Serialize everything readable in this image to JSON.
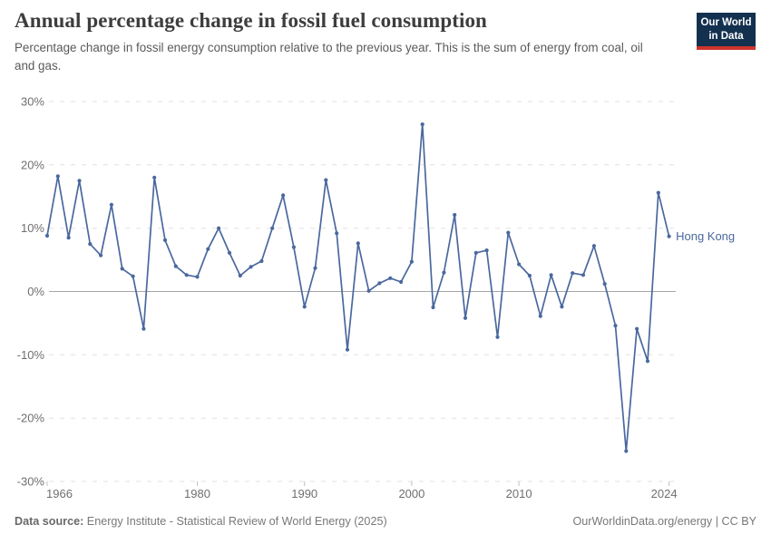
{
  "logo": {
    "line1": "Our World",
    "line2": "in Data"
  },
  "chart_data": {
    "type": "line",
    "title": "Annual percentage change in fossil fuel consumption",
    "subtitle": "Percentage change in fossil energy consumption relative to the previous year. This is the sum of energy from coal, oil and gas.",
    "x": [
      1966,
      1967,
      1968,
      1969,
      1970,
      1971,
      1972,
      1973,
      1974,
      1975,
      1976,
      1977,
      1978,
      1979,
      1980,
      1981,
      1982,
      1983,
      1984,
      1985,
      1986,
      1987,
      1988,
      1989,
      1990,
      1991,
      1992,
      1993,
      1994,
      1995,
      1996,
      1997,
      1998,
      1999,
      2000,
      2001,
      2002,
      2003,
      2004,
      2005,
      2006,
      2007,
      2008,
      2009,
      2010,
      2011,
      2012,
      2013,
      2014,
      2015,
      2016,
      2017,
      2018,
      2019,
      2020,
      2021,
      2022,
      2023,
      2024
    ],
    "series": [
      {
        "name": "Hong Kong",
        "color": "#4a689e",
        "values": [
          8.8,
          18.2,
          8.5,
          17.5,
          7.5,
          5.7,
          13.7,
          3.6,
          2.4,
          -5.9,
          18.0,
          8.1,
          4.0,
          2.6,
          2.3,
          6.7,
          10.0,
          6.1,
          2.5,
          3.9,
          4.8,
          10.0,
          15.2,
          7.0,
          -2.4,
          3.7,
          17.6,
          9.2,
          -9.2,
          7.6,
          0.1,
          1.3,
          2.1,
          1.5,
          4.7,
          26.4,
          -2.5,
          3.0,
          12.1,
          -4.2,
          6.1,
          6.5,
          -7.2,
          9.3,
          4.3,
          2.5,
          -3.9,
          2.6,
          -2.4,
          2.9,
          2.6,
          7.2,
          1.2,
          -5.4,
          -25.2,
          -5.9,
          -11.0,
          15.6,
          8.7
        ]
      }
    ],
    "xlabel": "",
    "ylabel": "",
    "ylim": [
      -30,
      30
    ],
    "yticks": [
      30,
      20,
      10,
      0,
      -10,
      -20,
      -30
    ],
    "ytick_suffix": "%",
    "xticks": [
      1966,
      1980,
      1990,
      2000,
      2010,
      2024
    ],
    "grid": "horizontal-dashed",
    "zero_line": true,
    "legend_position": "end-of-line-label"
  },
  "colors": {
    "line": "#4a689e",
    "grid": "#e0e0e0",
    "zero_line": "#a6a6a6",
    "tick_mark": "#c0c0c0",
    "axis_text": "#6f6f6f",
    "title_text": "#3d3d3d",
    "subtitle_text": "#5a5a5a",
    "footer_text": "#787878",
    "logo_bg": "#14304f",
    "logo_accent": "#d0342c"
  },
  "footer": {
    "source_label": "Data source:",
    "source_text": "Energy Institute - Statistical Review of World Energy (2025)",
    "rights": "OurWorldinData.org/energy | CC BY"
  }
}
